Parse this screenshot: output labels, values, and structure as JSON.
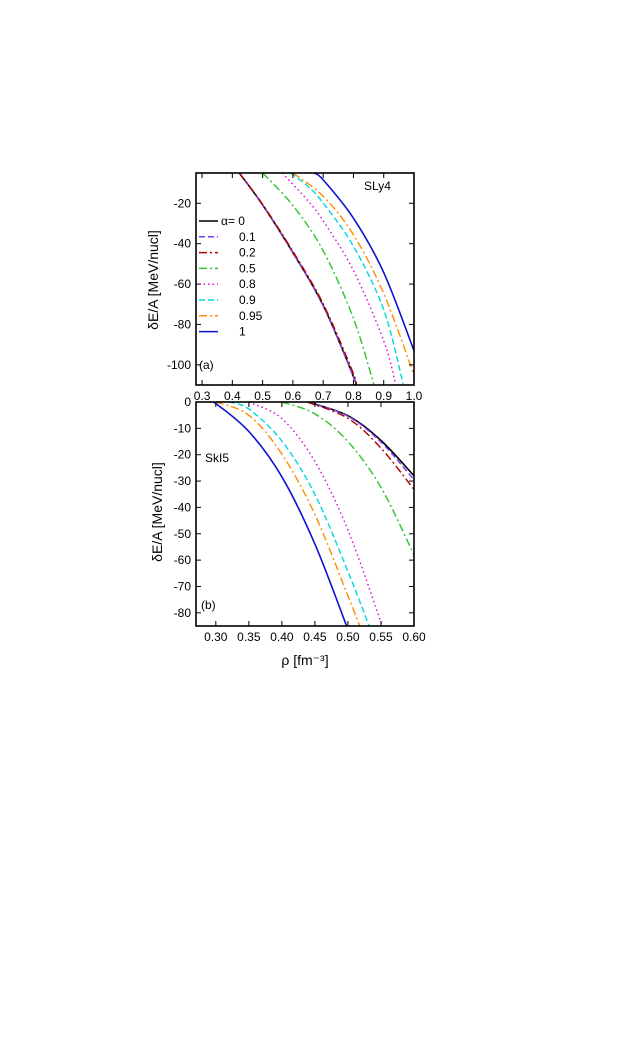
{
  "chart_data": [
    {
      "type": "line",
      "panel_label": "(a)",
      "model_label": "SLy4",
      "ylabel": "δE/A [MeV/nucl]",
      "xlabel": "",
      "xlim": [
        0.28,
        1.0
      ],
      "ylim": [
        -110,
        -5
      ],
      "x_ticks": [
        "0.3",
        "0.4",
        "0.5",
        "0.6",
        "0.7",
        "0.8",
        "0.9",
        "1.0"
      ],
      "y_ticks": [
        "-20",
        "-40",
        "-60",
        "-80",
        "-100"
      ],
      "legend_title": "α= 0",
      "legend_placement": "left",
      "series": [
        {
          "name": "α= 0",
          "color": "#000000",
          "dash": "solid",
          "x": [
            0.423,
            0.5,
            0.6,
            0.7,
            0.8,
            0.806
          ],
          "y": [
            -5,
            -20.8,
            -44.4,
            -70.6,
            -105.8,
            -110
          ]
        },
        {
          "name": "0.1",
          "color": "#7b3cf0",
          "dash": "dash",
          "x": [
            0.423,
            0.5,
            0.6,
            0.7,
            0.8,
            0.806
          ],
          "y": [
            -5,
            -20.8,
            -44.4,
            -70.6,
            -105.8,
            -110
          ]
        },
        {
          "name": "0.2",
          "color": "#b00000",
          "dash": "dashdot",
          "x": [
            0.423,
            0.5,
            0.6,
            0.7,
            0.8,
            0.806
          ],
          "y": [
            -5,
            -20.5,
            -43.8,
            -69.8,
            -104.4,
            -110
          ]
        },
        {
          "name": "0.5",
          "color": "#2ec42e",
          "dash": "dashdot",
          "x": [
            0.5,
            0.6,
            0.7,
            0.8,
            0.868
          ],
          "y": [
            -5,
            -21.1,
            -43.5,
            -77,
            -110
          ]
        },
        {
          "name": "0.8",
          "color": "#e000e0",
          "dash": "dot",
          "x": [
            0.565,
            0.65,
            0.7,
            0.8,
            0.9,
            0.94
          ],
          "y": [
            -5,
            -18.8,
            -28.7,
            -53.3,
            -88.1,
            -110
          ]
        },
        {
          "name": "0.9",
          "color": "#00d8d8",
          "dash": "dash",
          "x": [
            0.592,
            0.65,
            0.7,
            0.8,
            0.9,
            0.965
          ],
          "y": [
            -5,
            -11.7,
            -19.9,
            -41.3,
            -72.7,
            -110
          ]
        },
        {
          "name": "0.95",
          "color": "#ff8c00",
          "dash": "dashdot",
          "x": [
            0.6,
            0.7,
            0.8,
            0.9,
            1.0
          ],
          "y": [
            -5,
            -16.5,
            -35.6,
            -64.7,
            -105
          ]
        },
        {
          "name": "1",
          "color": "#1010d0",
          "dash": "solid",
          "x": [
            0.67,
            0.7,
            0.8,
            0.9,
            1.0
          ],
          "y": [
            -5,
            -8.4,
            -27.4,
            -54.3,
            -93
          ]
        }
      ]
    },
    {
      "type": "line",
      "panel_label": "(b)",
      "model_label": "SkI5",
      "ylabel": "δE/A [MeV/nucl]",
      "xlabel": "ρ [fm⁻³]",
      "xlim": [
        0.27,
        0.6
      ],
      "ylim": [
        -85,
        0
      ],
      "x_ticks": [
        "0.30",
        "0.35",
        "0.40",
        "0.45",
        "0.50",
        "0.55",
        "0.60"
      ],
      "y_ticks": [
        "0",
        "-10",
        "-20",
        "-30",
        "-40",
        "-50",
        "-60",
        "-70",
        "-80"
      ],
      "series": [
        {
          "name": "α= 0",
          "color": "#000000",
          "dash": "solid",
          "x": [
            0.44,
            0.5,
            0.55,
            0.6
          ],
          "y": [
            0,
            -5.2,
            -14.6,
            -28
          ]
        },
        {
          "name": "0.1",
          "color": "#7b3cf0",
          "dash": "dash",
          "x": [
            0.44,
            0.5,
            0.55,
            0.6
          ],
          "y": [
            0,
            -5.4,
            -15.2,
            -29.5
          ]
        },
        {
          "name": "0.2",
          "color": "#b00000",
          "dash": "dashdot",
          "x": [
            0.438,
            0.5,
            0.55,
            0.6
          ],
          "y": [
            0,
            -6.2,
            -17.5,
            -33.2
          ]
        },
        {
          "name": "0.5",
          "color": "#2ec42e",
          "dash": "dashdot",
          "x": [
            0.4,
            0.45,
            0.5,
            0.55,
            0.6
          ],
          "y": [
            0,
            -4.5,
            -15,
            -32.4,
            -58
          ]
        },
        {
          "name": "0.8",
          "color": "#e000e0",
          "dash": "dot",
          "x": [
            0.35,
            0.4,
            0.45,
            0.5,
            0.552
          ],
          "y": [
            0,
            -6.3,
            -22.6,
            -48.6,
            -85
          ]
        },
        {
          "name": "0.9",
          "color": "#00d8d8",
          "dash": "dash",
          "x": [
            0.32,
            0.35,
            0.4,
            0.45,
            0.5,
            0.532
          ],
          "y": [
            0,
            -2.7,
            -14.8,
            -35.1,
            -64.3,
            -85
          ]
        },
        {
          "name": "0.95",
          "color": "#ff8c00",
          "dash": "dashdot",
          "x": [
            0.3,
            0.35,
            0.4,
            0.45,
            0.5,
            0.518
          ],
          "y": [
            0,
            -5,
            -19.8,
            -42.7,
            -73.6,
            -85
          ]
        },
        {
          "name": "1",
          "color": "#1010d0",
          "dash": "solid",
          "x": [
            0.29,
            0.3,
            0.35,
            0.4,
            0.45,
            0.498
          ],
          "y": [
            0,
            -0.6,
            -11.2,
            -28.4,
            -53.9,
            -85
          ]
        }
      ]
    }
  ]
}
